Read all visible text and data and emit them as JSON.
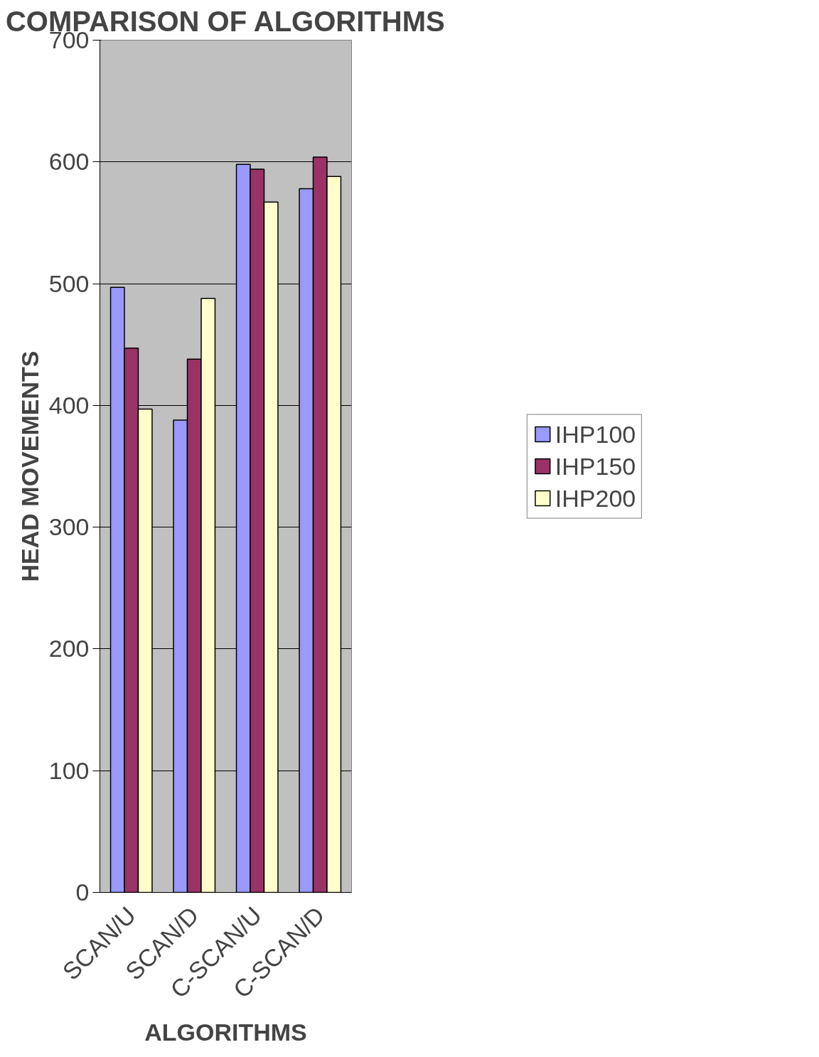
{
  "chart_data": {
    "type": "bar",
    "title": "COMPARISON OF ALGORITHMS",
    "xlabel": "ALGORITHMS",
    "ylabel": "HEAD MOVEMENTS",
    "categories": [
      "SCAN/U",
      "SCAN/D",
      "C-SCAN/U",
      "C-SCAN/D"
    ],
    "series": [
      {
        "name": "IHP100",
        "color": "#9999ff",
        "values": [
          497,
          388,
          598,
          578
        ]
      },
      {
        "name": "IHP150",
        "color": "#993366",
        "values": [
          447,
          438,
          594,
          604
        ]
      },
      {
        "name": "IHP200",
        "color": "#ffffcc",
        "values": [
          397,
          488,
          567,
          588
        ]
      }
    ],
    "ylim": [
      0,
      700
    ],
    "yticks": [
      0,
      100,
      200,
      300,
      400,
      500,
      600,
      700
    ],
    "grid": "y",
    "legend": "right"
  }
}
